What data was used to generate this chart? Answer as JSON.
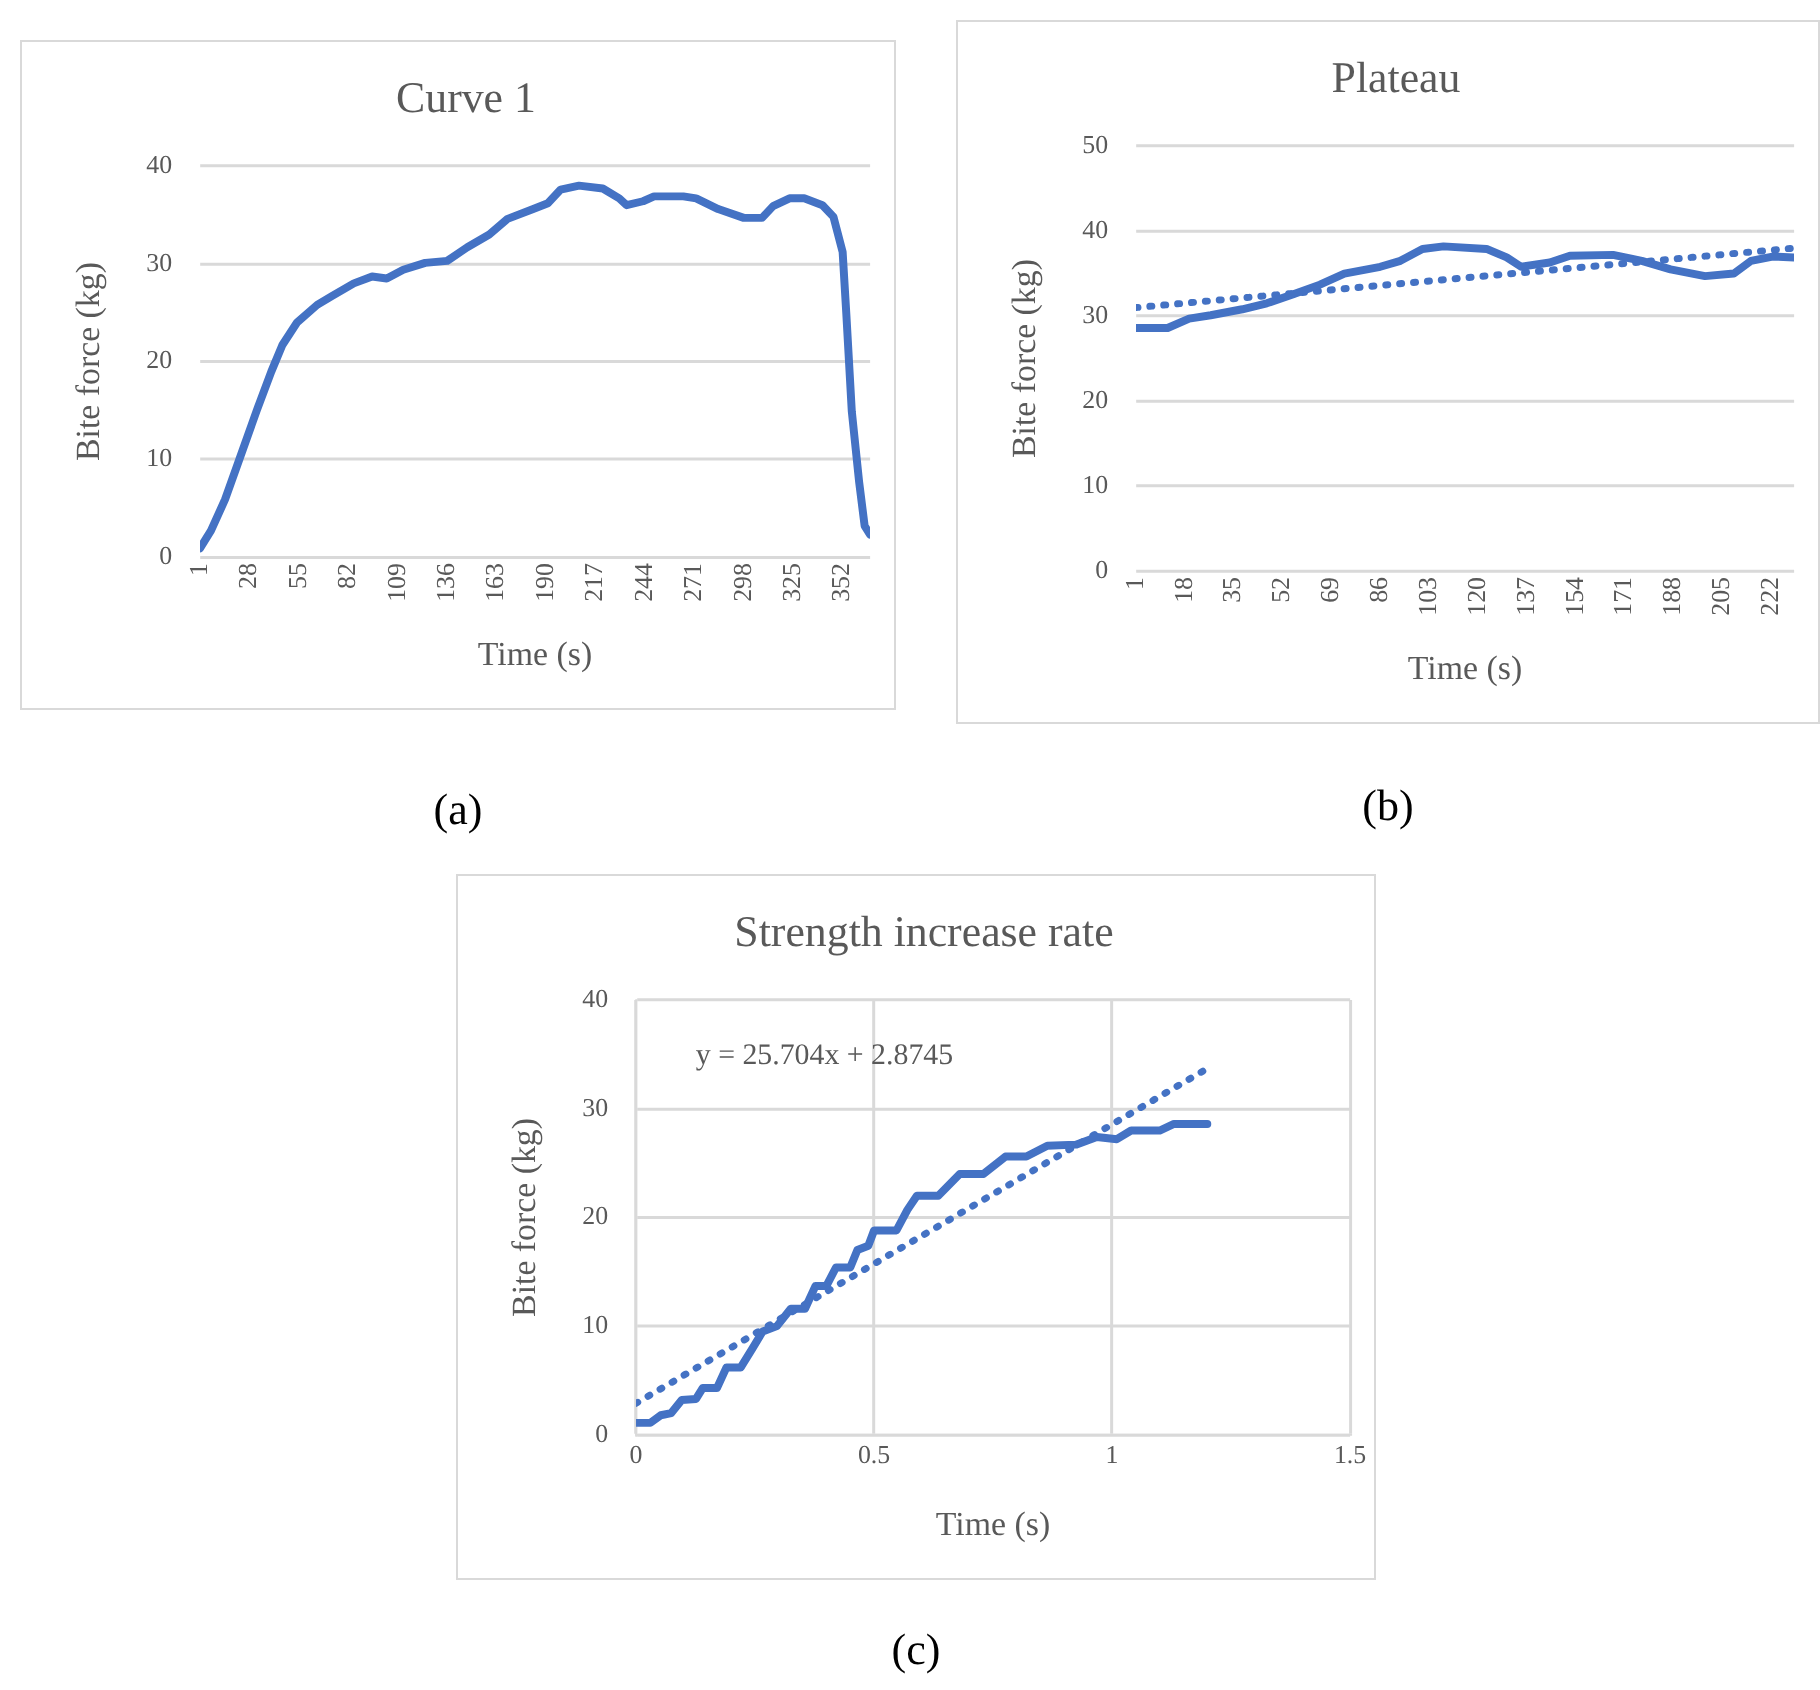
{
  "chart_data": [
    {
      "type": "line",
      "title": "Curve 1",
      "xlabel": "Time (s)",
      "ylabel": "Bite force (kg)",
      "annotations": [
        "(a)"
      ],
      "xlim": [
        1,
        367
      ],
      "xticks": [
        1,
        28,
        55,
        82,
        109,
        136,
        163,
        190,
        217,
        244,
        271,
        298,
        325,
        352
      ],
      "ylim": [
        0,
        40
      ],
      "yticks": [
        0,
        10,
        20,
        30,
        40
      ],
      "grid": "y",
      "marker": "none",
      "series": [
        {
          "color": "#4472c4",
          "line_style": "solid",
          "x": [
            1,
            7,
            14.7,
            22.5,
            32,
            40,
            46,
            54,
            65,
            73,
            85,
            95,
            103,
            112,
            124,
            136,
            147,
            159,
            169,
            183,
            191,
            198,
            208,
            221,
            230,
            234,
            243,
            249,
            265,
            272,
            284,
            298,
            308,
            314,
            323,
            331,
            341,
            347,
            352,
            354,
            357,
            361,
            364,
            367
          ],
          "values": [
            0.9,
            2.7,
            5.9,
            10,
            15,
            19,
            21.7,
            24,
            25.8,
            26.7,
            28,
            28.7,
            28.5,
            29.4,
            30.1,
            30.3,
            31.7,
            33,
            34.6,
            35.6,
            36.2,
            37.6,
            38,
            37.7,
            36.7,
            36,
            36.4,
            36.9,
            36.9,
            36.7,
            35.6,
            34.7,
            34.7,
            35.9,
            36.7,
            36.7,
            36,
            34.8,
            31.2,
            24.9,
            14.9,
            7.7,
            3.2,
            2.3
          ]
        }
      ]
    },
    {
      "type": "line",
      "title": "Plateau",
      "xlabel": "Time (s)",
      "ylabel": "Bite force (kg)",
      "annotations": [
        "(b)"
      ],
      "xlim": [
        1,
        230
      ],
      "xticks": [
        1,
        18,
        35,
        52,
        69,
        86,
        103,
        120,
        137,
        154,
        171,
        188,
        205,
        222
      ],
      "ylim": [
        0,
        50
      ],
      "yticks": [
        0,
        10,
        20,
        30,
        40,
        50
      ],
      "grid": "y",
      "marker": "none",
      "series": [
        {
          "color": "#4472c4",
          "line_style": "solid",
          "x": [
            1,
            12,
            19.5,
            27,
            38,
            46.5,
            56,
            65,
            73.5,
            86,
            93,
            100.7,
            108,
            123,
            130,
            135,
            145,
            152,
            167,
            177,
            187,
            199,
            209,
            215,
            222.5,
            230
          ],
          "values": [
            28.6,
            28.6,
            29.7,
            30.1,
            30.8,
            31.5,
            32.6,
            33.7,
            35,
            35.8,
            36.5,
            37.9,
            38.2,
            37.9,
            36.9,
            35.8,
            36.3,
            37.1,
            37.2,
            36.5,
            35.5,
            34.7,
            35,
            36.5,
            37,
            36.9
          ]
        },
        {
          "type": "line",
          "color": "#4472c4",
          "line_style": "dotted",
          "x": [
            1,
            230
          ],
          "values": [
            31,
            38
          ]
        }
      ]
    },
    {
      "type": "line",
      "title": "Strength increase rate",
      "xlabel": "Time (s)",
      "ylabel": "Bite force (kg)",
      "annotations": [
        "y = 25.704x + 2.8745",
        "(c)"
      ],
      "xlim": [
        0,
        1.5
      ],
      "xticks": [
        0,
        0.5,
        1,
        1.5
      ],
      "ylim": [
        0,
        40
      ],
      "yticks": [
        0,
        10,
        20,
        30,
        40
      ],
      "grid": true,
      "marker": "none",
      "series": [
        {
          "color": "#4472c4",
          "line_style": "solid",
          "x": [
            0,
            0.03,
            0.052,
            0.074,
            0.096,
            0.126,
            0.14,
            0.17,
            0.19,
            0.22,
            0.244,
            0.266,
            0.296,
            0.325,
            0.355,
            0.377,
            0.4,
            0.42,
            0.45,
            0.465,
            0.488,
            0.5,
            0.547,
            0.57,
            0.59,
            0.635,
            0.68,
            0.73,
            0.776,
            0.82,
            0.864,
            0.924,
            0.968,
            1.01,
            1.04,
            1.1,
            1.13,
            1.2
          ],
          "values": [
            1.1,
            1.1,
            1.8,
            2,
            3.2,
            3.3,
            4.3,
            4.3,
            6.2,
            6.2,
            7.9,
            9.5,
            10,
            11.6,
            11.6,
            13.7,
            13.7,
            15.4,
            15.4,
            17,
            17.4,
            18.8,
            18.8,
            20.7,
            22,
            22,
            24,
            24,
            25.6,
            25.6,
            26.6,
            26.7,
            27.4,
            27.2,
            28,
            28,
            28.6,
            28.6
          ]
        },
        {
          "type": "line",
          "color": "#4472c4",
          "line_style": "dotted",
          "x": [
            0,
            1.2
          ],
          "values": [
            2.9,
            33.7
          ]
        }
      ]
    }
  ]
}
